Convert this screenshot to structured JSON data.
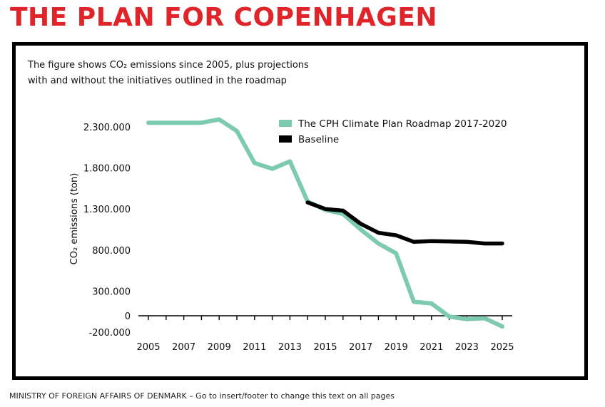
{
  "page": {
    "title": "THE PLAN FOR COPENHAGEN",
    "footer": "MINISTRY OF FOREIGN AFFAIRS OF DENMARK – Go to insert/footer to change this text on all pages"
  },
  "colors": {
    "title": "#e0252a",
    "roadmap": "#7dcab3",
    "baseline": "#000000"
  },
  "chart_data": {
    "type": "line",
    "title_line1": "The figure shows CO₂ emissions since 2005, plus projections",
    "title_line2": "with and without the initiatives outlined in the roadmap",
    "ylabel": "CO₂ emissions (ton)",
    "xlabel": "",
    "xlim": [
      2005,
      2025
    ],
    "ylim": [
      -200000,
      2400000
    ],
    "x_ticks": [
      2005,
      2007,
      2009,
      2011,
      2013,
      2015,
      2017,
      2019,
      2021,
      2023,
      2025
    ],
    "x_tick_labels": [
      "2005",
      "2007",
      "2009",
      "2011",
      "2013",
      "2015",
      "2017",
      "2019",
      "2021",
      "2023",
      "2025"
    ],
    "y_ticks": [
      2300000,
      1800000,
      1300000,
      800000,
      300000,
      0,
      -200000
    ],
    "y_tick_labels": [
      "2.300.000",
      "1.800.000",
      "1.300.000",
      "800.000",
      "300.000",
      "0",
      "-200.000"
    ],
    "legend_position": "top-right",
    "series": [
      {
        "name": "The CPH Climate Plan Roadmap 2017-2020",
        "color": "#7dcab3",
        "x": [
          2005,
          2006,
          2007,
          2008,
          2009,
          2010,
          2011,
          2012,
          2013,
          2014,
          2015,
          2016,
          2017,
          2018,
          2019,
          2020,
          2021,
          2022,
          2023,
          2024,
          2025
        ],
        "values": [
          2350000,
          2350000,
          2350000,
          2350000,
          2390000,
          2250000,
          1860000,
          1790000,
          1880000,
          1390000,
          1290000,
          1240000,
          1050000,
          880000,
          760000,
          170000,
          150000,
          -10000,
          -40000,
          -30000,
          -130000
        ]
      },
      {
        "name": "Baseline",
        "color": "#000000",
        "x": [
          2014,
          2015,
          2016,
          2017,
          2018,
          2019,
          2020,
          2021,
          2022,
          2023,
          2024,
          2025
        ],
        "values": [
          1380000,
          1300000,
          1280000,
          1120000,
          1010000,
          980000,
          900000,
          910000,
          905000,
          900000,
          880000,
          880000
        ]
      }
    ]
  }
}
